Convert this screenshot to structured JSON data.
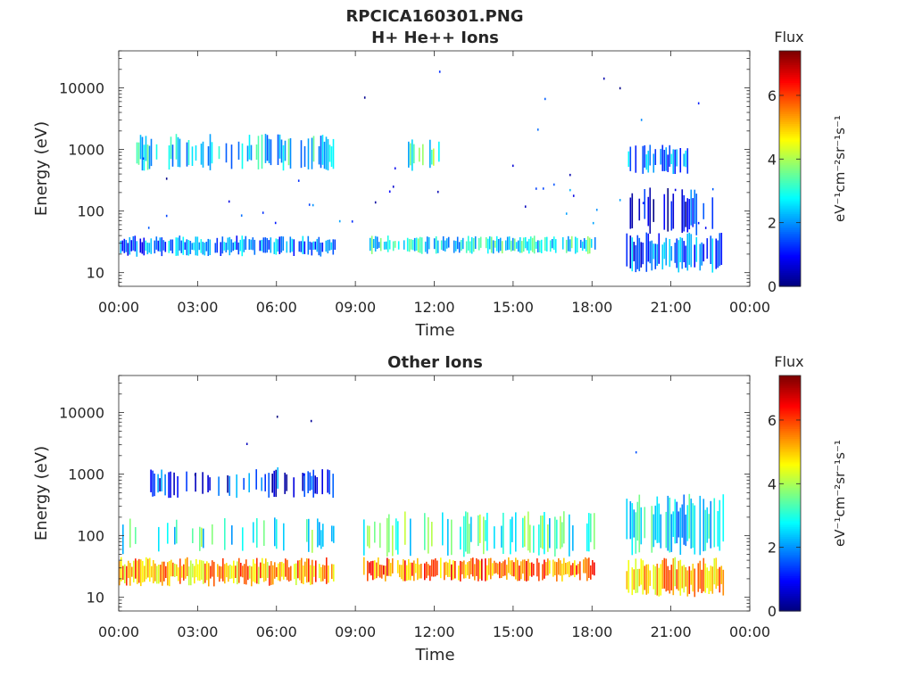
{
  "figure": {
    "title": "RPCICA160301.PNG"
  },
  "chart_data": [
    {
      "type": "heatmap",
      "title": "H+ He++ Ions",
      "xlabel": "Time",
      "ylabel": "Energy (eV)",
      "x_ticks": [
        "00:00",
        "03:00",
        "06:00",
        "09:00",
        "12:00",
        "15:00",
        "18:00",
        "21:00",
        "00:00"
      ],
      "x_tick_hours": [
        0,
        3,
        6,
        9,
        12,
        15,
        18,
        21,
        24
      ],
      "xlim_hours": [
        0,
        24
      ],
      "y_scale": "log",
      "y_ticks": [
        "10",
        "100",
        "1000",
        "10000"
      ],
      "y_tick_values": [
        10,
        100,
        1000,
        10000
      ],
      "ylim": [
        6,
        40000
      ],
      "colorbar": {
        "label": "Flux",
        "units": "eV⁻¹cm⁻²sr⁻¹s⁻¹",
        "ticks": [
          "0",
          "2",
          "4",
          "6"
        ],
        "tick_values": [
          0,
          2,
          4,
          6
        ],
        "range": [
          0,
          7.4
        ],
        "colormap": "jet"
      },
      "data_gaps_hours": [
        [
          8.3,
          9.4
        ],
        [
          18.1,
          19.3
        ],
        [
          23.0,
          24
        ]
      ],
      "bands": [
        {
          "start_hour": 0.05,
          "end_hour": 8.2,
          "e_low": 18,
          "e_high": 40,
          "flux": 1.8,
          "density": 0.85
        },
        {
          "start_hour": 9.4,
          "end_hour": 18.1,
          "e_low": 20,
          "e_high": 40,
          "flux": 2.8,
          "density": 0.75
        },
        {
          "start_hour": 19.3,
          "end_hour": 23.0,
          "e_low": 10,
          "e_high": 45,
          "flux": 1.6,
          "density": 0.85
        },
        {
          "start_hour": 0.6,
          "end_hour": 8.2,
          "e_low": 450,
          "e_high": 1800,
          "flux": 2.6,
          "density": 0.6
        },
        {
          "start_hour": 11.0,
          "end_hour": 12.2,
          "e_low": 450,
          "e_high": 1500,
          "flux": 3.2,
          "density": 0.5
        },
        {
          "start_hour": 19.3,
          "end_hour": 22.0,
          "e_low": 400,
          "e_high": 1200,
          "flux": 2.0,
          "density": 0.5
        },
        {
          "start_hour": 0.1,
          "end_hour": 23.0,
          "e_low": 50,
          "e_high": 250,
          "flux": 1.2,
          "density": 0.08
        },
        {
          "start_hour": 19.3,
          "end_hour": 23.0,
          "e_low": 40,
          "e_high": 250,
          "flux": 1.0,
          "density": 0.35
        },
        {
          "start_hour": 0.1,
          "end_hour": 23.0,
          "e_low": 200,
          "e_high": 30000,
          "flux": 1.0,
          "density": 0.025
        }
      ]
    },
    {
      "type": "heatmap",
      "title": "Other Ions",
      "xlabel": "Time",
      "ylabel": "Energy (eV)",
      "x_ticks": [
        "00:00",
        "03:00",
        "06:00",
        "09:00",
        "12:00",
        "15:00",
        "18:00",
        "21:00",
        "00:00"
      ],
      "x_tick_hours": [
        0,
        3,
        6,
        9,
        12,
        15,
        18,
        21,
        24
      ],
      "xlim_hours": [
        0,
        24
      ],
      "y_scale": "log",
      "y_ticks": [
        "10",
        "100",
        "1000",
        "10000"
      ],
      "y_tick_values": [
        10,
        100,
        1000,
        10000
      ],
      "ylim": [
        6,
        40000
      ],
      "colorbar": {
        "label": "Flux",
        "units": "eV⁻¹cm⁻²sr⁻¹s⁻¹",
        "ticks": [
          "0",
          "2",
          "4",
          "6"
        ],
        "tick_values": [
          0,
          2,
          4,
          6
        ],
        "range": [
          0,
          7.4
        ],
        "colormap": "jet"
      },
      "data_gaps_hours": [
        [
          8.3,
          9.3
        ],
        [
          18.1,
          19.3
        ],
        [
          23.0,
          24
        ]
      ],
      "bands": [
        {
          "start_hour": 0.0,
          "end_hour": 8.2,
          "e_low": 15,
          "e_high": 45,
          "flux": 5.2,
          "density": 0.95
        },
        {
          "start_hour": 9.3,
          "end_hour": 18.1,
          "e_low": 18,
          "e_high": 45,
          "flux": 5.6,
          "density": 0.9
        },
        {
          "start_hour": 19.3,
          "end_hour": 23.0,
          "e_low": 10,
          "e_high": 45,
          "flux": 5.2,
          "density": 0.95
        },
        {
          "start_hour": 0.0,
          "end_hour": 8.2,
          "e_low": 50,
          "e_high": 200,
          "flux": 3.0,
          "density": 0.3
        },
        {
          "start_hour": 9.3,
          "end_hour": 18.1,
          "e_low": 45,
          "e_high": 250,
          "flux": 3.2,
          "density": 0.45
        },
        {
          "start_hour": 19.3,
          "end_hour": 23.0,
          "e_low": 45,
          "e_high": 500,
          "flux": 2.6,
          "density": 0.75
        },
        {
          "start_hour": 1.2,
          "end_hour": 8.2,
          "e_low": 400,
          "e_high": 1300,
          "flux": 1.2,
          "density": 0.3
        },
        {
          "start_hour": 0.1,
          "end_hour": 23.0,
          "e_low": 800,
          "e_high": 10000,
          "flux": 1.0,
          "density": 0.02
        }
      ]
    }
  ]
}
